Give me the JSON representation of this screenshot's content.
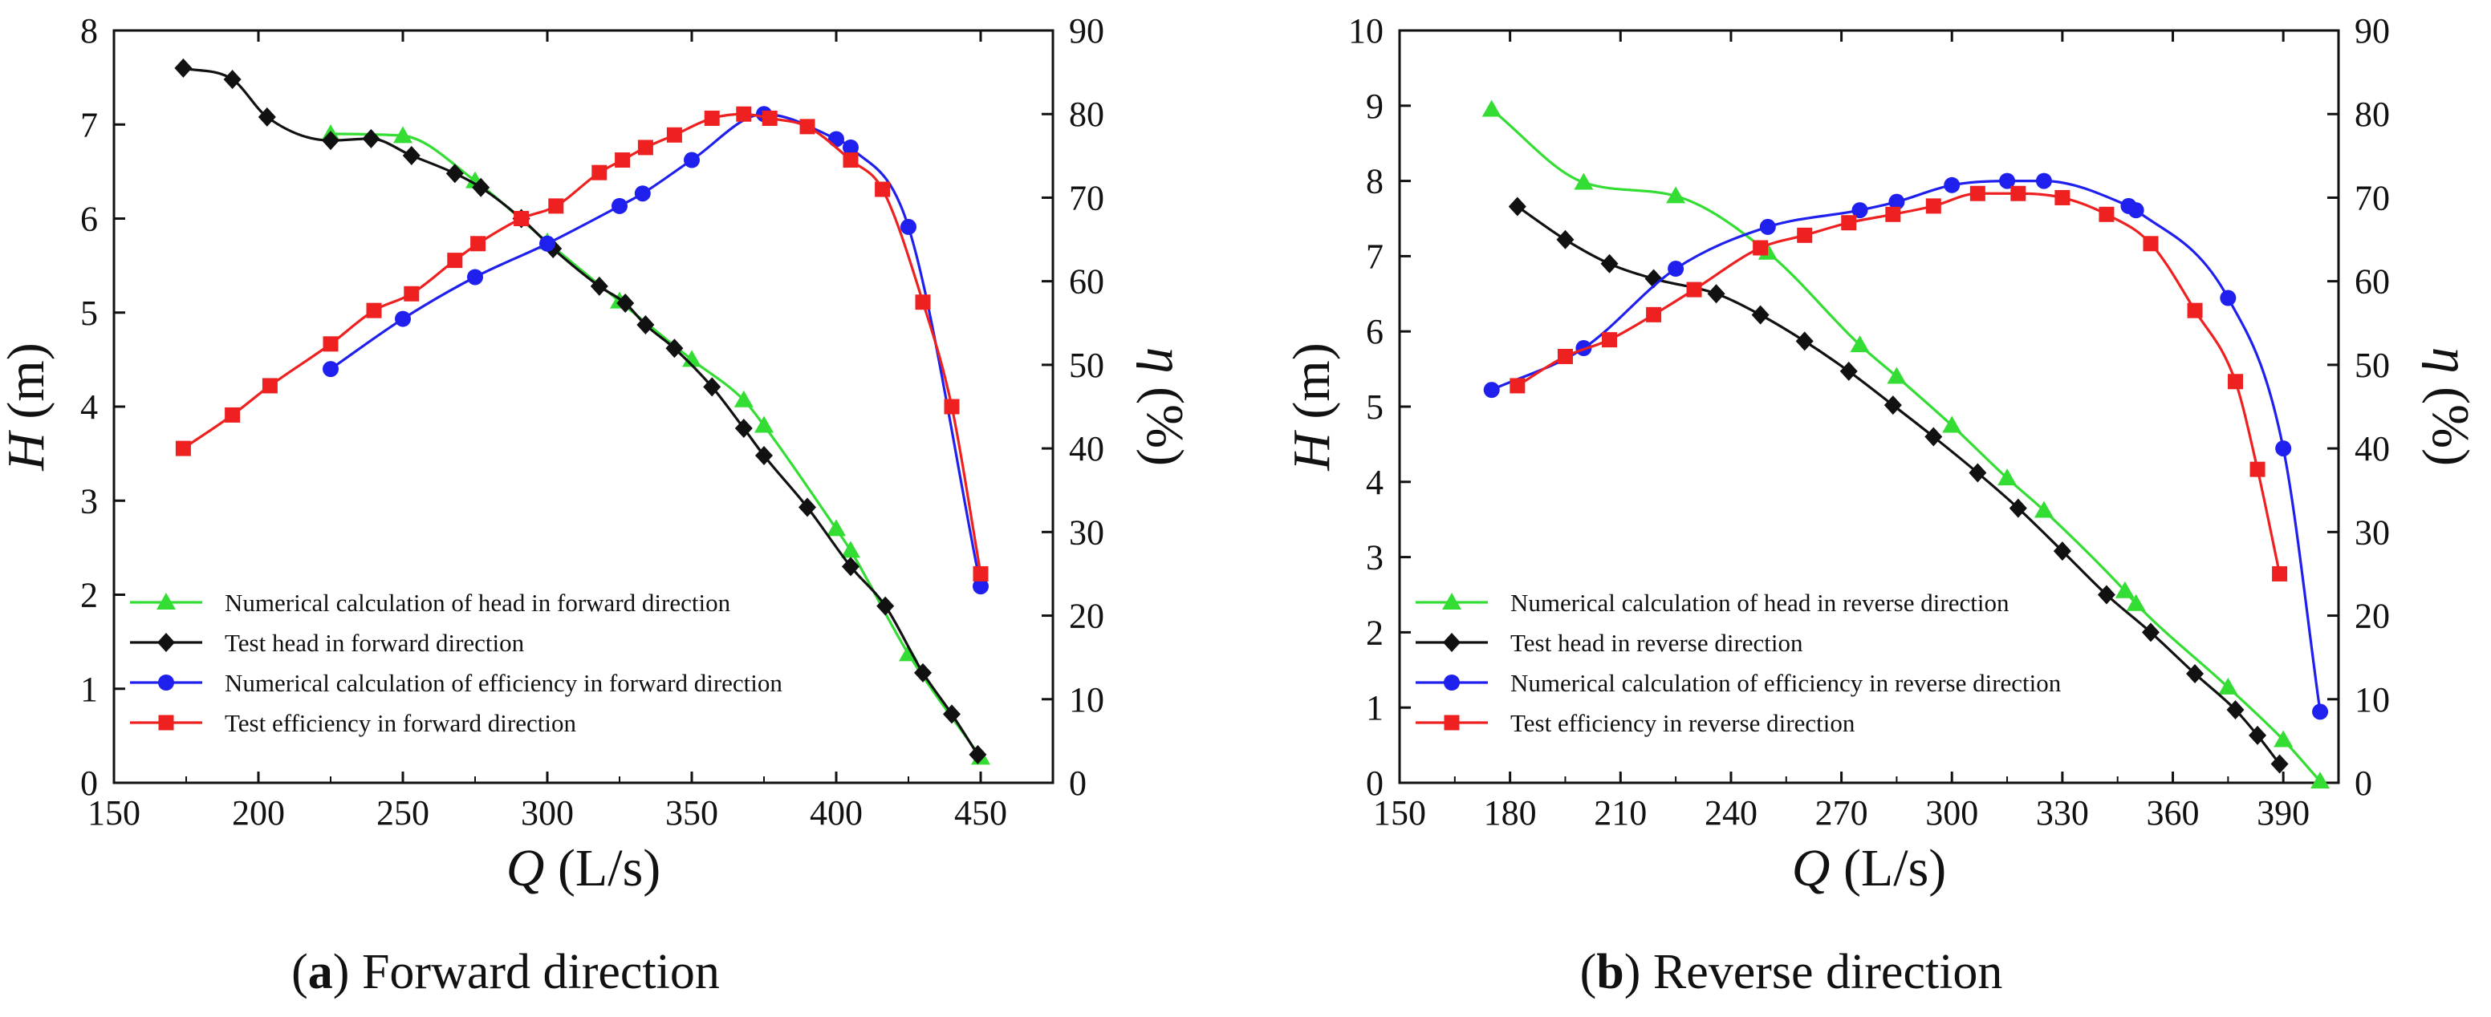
{
  "chart_data": [
    {
      "type": "line",
      "panel": "a",
      "caption": {
        "letter": "a",
        "text": "Forward direction"
      },
      "xlabel": {
        "var": "Q",
        "unit": "(L/s)"
      },
      "ylabel_left": {
        "var": "H",
        "unit": "(m)"
      },
      "ylabel_right": {
        "var": "η",
        "unit": "(%)"
      },
      "xlim": [
        150,
        475
      ],
      "xticks": [
        150,
        200,
        250,
        300,
        350,
        400,
        450
      ],
      "ylim_left": [
        0,
        8
      ],
      "yticks_left": [
        0,
        1,
        2,
        3,
        4,
        5,
        6,
        7,
        8
      ],
      "ylim_right": [
        0,
        90
      ],
      "yticks_right": [
        0,
        10,
        20,
        30,
        40,
        50,
        60,
        70,
        80,
        90
      ],
      "legend_position": "bottom-left",
      "series": [
        {
          "name": "Numerical calculation of head in forward direction",
          "axis": "left",
          "color": "#33dd33",
          "marker": "triangle",
          "x": [
            225,
            250,
            275,
            300,
            325,
            350,
            368,
            375,
            400,
            405,
            425,
            450
          ],
          "y": [
            6.9,
            6.88,
            6.4,
            5.75,
            5.12,
            4.5,
            4.07,
            3.8,
            2.7,
            2.47,
            1.37,
            0.27
          ]
        },
        {
          "name": "Test head in forward direction",
          "axis": "left",
          "color": "#111111",
          "marker": "diamond",
          "x": [
            174,
            191,
            203,
            225,
            239,
            253,
            268,
            277,
            291,
            302,
            318,
            327,
            334,
            344,
            357,
            368,
            375,
            390,
            405,
            417,
            430,
            440,
            449
          ],
          "y": [
            7.6,
            7.48,
            7.08,
            6.83,
            6.85,
            6.67,
            6.48,
            6.33,
            6.0,
            5.68,
            5.28,
            5.1,
            4.87,
            4.62,
            4.21,
            3.77,
            3.48,
            2.93,
            2.3,
            1.88,
            1.17,
            0.73,
            0.3
          ]
        },
        {
          "name": "Numerical calculation of efficiency in forward direction",
          "axis": "right",
          "color": "#2020ee",
          "marker": "circle",
          "x": [
            225,
            250,
            275,
            300,
            325,
            333,
            350,
            375,
            400,
            405,
            425,
            450
          ],
          "y": [
            49.5,
            55.5,
            60.5,
            64.5,
            69,
            70.5,
            74.5,
            80,
            77,
            76,
            66.5,
            23.5
          ]
        },
        {
          "name": "Test efficiency in forward direction",
          "axis": "right",
          "color": "#ee2020",
          "marker": "square",
          "x": [
            174,
            191,
            204,
            225,
            240,
            253,
            268,
            276,
            291,
            303,
            318,
            326,
            334,
            344,
            357,
            368,
            377,
            390,
            405,
            416,
            430,
            440,
            450
          ],
          "y": [
            40,
            44,
            47.5,
            52.5,
            56.5,
            58.5,
            62.5,
            64.5,
            67.5,
            69,
            73,
            74.5,
            76,
            77.5,
            79.5,
            80,
            79.5,
            78.5,
            74.5,
            71,
            57.5,
            45,
            25
          ]
        }
      ]
    },
    {
      "type": "line",
      "panel": "b",
      "caption": {
        "letter": "b",
        "text": "Reverse direction"
      },
      "xlabel": {
        "var": "Q",
        "unit": "(L/s)"
      },
      "ylabel_left": {
        "var": "H",
        "unit": "(m)"
      },
      "ylabel_right": {
        "var": "η",
        "unit": "(%)"
      },
      "xlim": [
        150,
        405
      ],
      "xticks": [
        150,
        180,
        210,
        240,
        270,
        300,
        330,
        360,
        390
      ],
      "ylim_left": [
        0,
        10
      ],
      "yticks_left": [
        0,
        1,
        2,
        3,
        4,
        5,
        6,
        7,
        8,
        9,
        10
      ],
      "ylim_right": [
        0,
        90
      ],
      "yticks_right": [
        0,
        10,
        20,
        30,
        40,
        50,
        60,
        70,
        80,
        90
      ],
      "legend_position": "bottom-left",
      "series": [
        {
          "name": "Numerical calculation of head in reverse direction",
          "axis": "left",
          "color": "#33dd33",
          "marker": "triangle",
          "x": [
            175,
            200,
            225,
            250,
            275,
            285,
            300,
            315,
            325,
            347,
            350,
            375,
            390,
            400
          ],
          "y": [
            8.95,
            7.98,
            7.8,
            7.05,
            5.82,
            5.4,
            4.75,
            4.05,
            3.62,
            2.55,
            2.38,
            1.27,
            0.57,
            0.02
          ]
        },
        {
          "name": "Test head in reverse direction",
          "axis": "left",
          "color": "#111111",
          "marker": "diamond",
          "x": [
            182,
            195,
            207,
            219,
            236,
            248,
            260,
            272,
            284,
            295,
            307,
            318,
            330,
            342,
            354,
            366,
            377,
            383,
            389
          ],
          "y": [
            7.66,
            7.22,
            6.9,
            6.7,
            6.5,
            6.22,
            5.87,
            5.47,
            5.02,
            4.6,
            4.12,
            3.65,
            3.08,
            2.5,
            2.0,
            1.45,
            0.97,
            0.63,
            0.25
          ]
        },
        {
          "name": "Numerical calculation of efficiency in reverse direction",
          "axis": "right",
          "color": "#2020ee",
          "marker": "circle",
          "x": [
            175,
            200,
            225,
            250,
            275,
            285,
            300,
            315,
            325,
            348,
            350,
            375,
            390,
            400
          ],
          "y": [
            47,
            52,
            61.5,
            66.5,
            68.5,
            69.5,
            71.5,
            72,
            72,
            69,
            68.5,
            58,
            40,
            8.5
          ]
        },
        {
          "name": "Test efficiency in reverse direction",
          "axis": "right",
          "color": "#ee2020",
          "marker": "square",
          "x": [
            182,
            195,
            207,
            219,
            230,
            248,
            260,
            272,
            284,
            295,
            307,
            318,
            330,
            342,
            354,
            366,
            377,
            383,
            389
          ],
          "y": [
            47.5,
            51,
            53,
            56,
            59,
            64,
            65.5,
            67,
            68,
            69,
            70.5,
            70.5,
            70,
            68,
            64.5,
            56.5,
            48,
            37.5,
            25
          ]
        }
      ]
    }
  ]
}
